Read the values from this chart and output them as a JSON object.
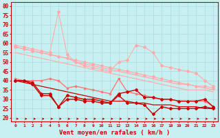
{
  "x": [
    0,
    1,
    2,
    3,
    4,
    5,
    6,
    7,
    8,
    9,
    10,
    11,
    12,
    13,
    14,
    15,
    16,
    17,
    18,
    19,
    20,
    21,
    22,
    23
  ],
  "background_color": "#c8f0f0",
  "grid_color": "#aadddd",
  "xlabel": "Vent moyen/en rafales ( km/h )",
  "xlabel_color": "#cc0000",
  "yticks": [
    20,
    25,
    30,
    35,
    40,
    45,
    50,
    55,
    60,
    65,
    70,
    75,
    80
  ],
  "ylim": [
    18,
    82
  ],
  "xlim": [
    -0.5,
    23.5
  ],
  "series": [
    {
      "color": "#ffaaaa",
      "values": [
        59,
        58,
        57,
        56,
        55,
        77,
        54,
        50,
        48,
        47,
        46,
        45,
        50,
        51,
        59,
        58,
        55,
        48,
        47,
        46,
        45,
        44,
        40,
        37
      ],
      "linestyle": "-",
      "marker": "D",
      "markersize": 2,
      "linewidth": 0.8
    },
    {
      "color": "#ffaaaa",
      "values": [
        58,
        57,
        56,
        55,
        54,
        53,
        52,
        51,
        50,
        49,
        48,
        47,
        46,
        45,
        44,
        43,
        42,
        41,
        40,
        39,
        38,
        37,
        37,
        36
      ],
      "linestyle": "-",
      "marker": "D",
      "markersize": 2,
      "linewidth": 0.8
    },
    {
      "color": "#ffaaaa",
      "values": [
        55,
        54,
        53,
        52,
        51,
        50,
        49,
        48,
        47,
        46,
        45,
        44,
        43,
        42,
        41,
        40,
        39,
        38,
        37,
        36,
        35,
        35,
        35,
        34
      ],
      "linestyle": "-",
      "marker": null,
      "markersize": 0,
      "linewidth": 0.8
    },
    {
      "color": "#ff7777",
      "values": [
        41,
        40,
        40,
        40,
        41,
        40,
        36,
        37,
        36,
        35,
        34,
        33,
        41,
        34,
        33,
        32,
        31,
        30,
        30,
        29,
        29,
        29,
        29,
        26
      ],
      "linestyle": "-",
      "marker": "s",
      "markersize": 2,
      "linewidth": 1.0
    },
    {
      "color": "#cc0000",
      "values": [
        40,
        40,
        39,
        33,
        33,
        26,
        32,
        31,
        30,
        30,
        29,
        28,
        33,
        34,
        35,
        31,
        31,
        30,
        30,
        29,
        29,
        29,
        30,
        26
      ],
      "linestyle": "-",
      "marker": "D",
      "markersize": 2,
      "linewidth": 1.0
    },
    {
      "color": "#cc0000",
      "values": [
        40,
        40,
        38,
        32,
        32,
        26,
        30,
        30,
        29,
        29,
        28,
        28,
        32,
        28,
        28,
        27,
        22,
        26,
        25,
        25,
        25,
        25,
        26,
        25
      ],
      "linestyle": "-",
      "marker": "D",
      "markersize": 2,
      "linewidth": 1.0
    },
    {
      "color": "#cc0000",
      "values": [
        40,
        39,
        38,
        37,
        36,
        35,
        34,
        33,
        32,
        31,
        30,
        29,
        29,
        29,
        28,
        28,
        27,
        27,
        27,
        26,
        26,
        26,
        25,
        25
      ],
      "linestyle": "-",
      "marker": null,
      "markersize": 0,
      "linewidth": 0.9
    },
    {
      "color": "#ffaaaa",
      "values": [
        58,
        57,
        56,
        55,
        54,
        53,
        52,
        50,
        49,
        48,
        47,
        46,
        45,
        44,
        43,
        42,
        41,
        40,
        39,
        38,
        38,
        37,
        36,
        35
      ],
      "linestyle": "-",
      "marker": null,
      "markersize": 0,
      "linewidth": 0.9
    }
  ]
}
